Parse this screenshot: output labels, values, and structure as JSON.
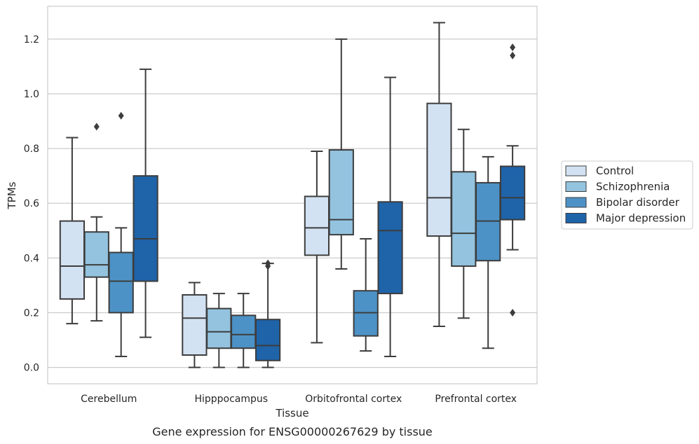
{
  "colors": {
    "Control": "#d2e2f2",
    "Schizophrenia": "#93c3df",
    "Bipolar disorder": "#4d92c6",
    "Major depression": "#1f63a9",
    "edge": "#3d3d3d",
    "grid": "#cccccc",
    "frame": "#cccccc"
  },
  "chart_data": {
    "type": "box",
    "title": "",
    "caption": "Gene expression for ENSG00000267629 by tissue",
    "xlabel": "Tissue",
    "ylabel": "TPMs",
    "ylim": [
      -0.06,
      1.32
    ],
    "yticks": [
      0.0,
      0.2,
      0.4,
      0.6,
      0.8,
      1.0,
      1.2
    ],
    "ytick_labels": [
      "0.0",
      "0.2",
      "0.4",
      "0.6",
      "0.8",
      "1.0",
      "1.2"
    ],
    "grid": "horizontal",
    "legend_position": "right",
    "categories": [
      "Cerebellum",
      "Hipppocampus",
      "Orbitofrontal cortex",
      "Prefrontal cortex"
    ],
    "series": [
      {
        "name": "Control",
        "boxes": [
          {
            "whislo": 0.16,
            "q1": 0.25,
            "med": 0.37,
            "q3": 0.535,
            "whishi": 0.84,
            "fliers": []
          },
          {
            "whislo": 0.0,
            "q1": 0.045,
            "med": 0.18,
            "q3": 0.265,
            "whishi": 0.31,
            "fliers": []
          },
          {
            "whislo": 0.09,
            "q1": 0.41,
            "med": 0.51,
            "q3": 0.625,
            "whishi": 0.79,
            "fliers": []
          },
          {
            "whislo": 0.15,
            "q1": 0.48,
            "med": 0.62,
            "q3": 0.965,
            "whishi": 1.26,
            "fliers": []
          }
        ]
      },
      {
        "name": "Schizophrenia",
        "boxes": [
          {
            "whislo": 0.17,
            "q1": 0.33,
            "med": 0.375,
            "q3": 0.495,
            "whishi": 0.55,
            "fliers": [
              0.88
            ]
          },
          {
            "whislo": 0.0,
            "q1": 0.07,
            "med": 0.13,
            "q3": 0.215,
            "whishi": 0.27,
            "fliers": []
          },
          {
            "whislo": 0.36,
            "q1": 0.485,
            "med": 0.54,
            "q3": 0.795,
            "whishi": 1.2,
            "fliers": []
          },
          {
            "whislo": 0.18,
            "q1": 0.37,
            "med": 0.49,
            "q3": 0.715,
            "whishi": 0.87,
            "fliers": []
          }
        ]
      },
      {
        "name": "Bipolar disorder",
        "boxes": [
          {
            "whislo": 0.04,
            "q1": 0.2,
            "med": 0.315,
            "q3": 0.42,
            "whishi": 0.51,
            "fliers": [
              0.92
            ]
          },
          {
            "whislo": 0.0,
            "q1": 0.07,
            "med": 0.12,
            "q3": 0.19,
            "whishi": 0.27,
            "fliers": []
          },
          {
            "whislo": 0.06,
            "q1": 0.115,
            "med": 0.2,
            "q3": 0.28,
            "whishi": 0.47,
            "fliers": []
          },
          {
            "whislo": 0.07,
            "q1": 0.39,
            "med": 0.535,
            "q3": 0.675,
            "whishi": 0.77,
            "fliers": []
          }
        ]
      },
      {
        "name": "Major depression",
        "boxes": [
          {
            "whislo": 0.11,
            "q1": 0.315,
            "med": 0.47,
            "q3": 0.7,
            "whishi": 1.09,
            "fliers": []
          },
          {
            "whislo": 0.0,
            "q1": 0.025,
            "med": 0.08,
            "q3": 0.175,
            "whishi": 0.38,
            "fliers": [
              0.37,
              0.38
            ]
          },
          {
            "whislo": 0.04,
            "q1": 0.27,
            "med": 0.5,
            "q3": 0.605,
            "whishi": 1.06,
            "fliers": []
          },
          {
            "whislo": 0.43,
            "q1": 0.54,
            "med": 0.62,
            "q3": 0.735,
            "whishi": 0.81,
            "fliers": [
              0.2,
              1.14,
              1.17
            ]
          }
        ]
      }
    ]
  }
}
